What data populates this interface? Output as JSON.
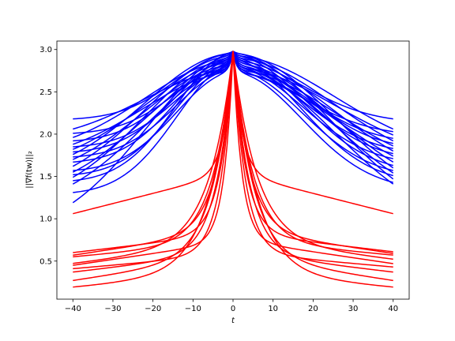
{
  "chart_data": {
    "type": "line",
    "xlabel": "t",
    "ylabel": "||∇f(tw)||₂",
    "xlim": [
      -44,
      44
    ],
    "ylim": [
      0.05,
      3.1
    ],
    "xticks": [
      -40,
      -30,
      -20,
      -10,
      0,
      10,
      20,
      30,
      40
    ],
    "yticks": [
      0.5,
      1.0,
      1.5,
      2.0,
      2.5,
      3.0
    ],
    "ytick_labels": [
      "0.5",
      "1.0",
      "1.5",
      "2.0",
      "2.5",
      "3.0"
    ],
    "peak_value": 2.98,
    "grid": false,
    "legend": "none",
    "colors": {
      "blue_group": "#0000ff",
      "red_group": "#ff0000"
    },
    "series_blue": [
      {
        "left_end": 2.18,
        "right_end": 2.18
      },
      {
        "left_end": 2.06,
        "right_end": 2.06
      },
      {
        "left_end": 2.01,
        "right_end": 2.03
      },
      {
        "left_end": 1.96,
        "right_end": 1.99
      },
      {
        "left_end": 1.92,
        "right_end": 1.95
      },
      {
        "left_end": 1.88,
        "right_end": 1.92
      },
      {
        "left_end": 1.85,
        "right_end": 1.89
      },
      {
        "left_end": 1.82,
        "right_end": 1.86
      },
      {
        "left_end": 1.79,
        "right_end": 1.83
      },
      {
        "left_end": 1.76,
        "right_end": 1.8
      },
      {
        "left_end": 1.73,
        "right_end": 1.77
      },
      {
        "left_end": 1.7,
        "right_end": 1.74
      },
      {
        "left_end": 1.67,
        "right_end": 1.71
      },
      {
        "left_end": 1.62,
        "right_end": 1.67
      },
      {
        "left_end": 1.57,
        "right_end": 1.63
      },
      {
        "left_end": 1.55,
        "right_end": 1.6
      },
      {
        "left_end": 1.52,
        "right_end": 1.57
      },
      {
        "left_end": 1.49,
        "right_end": 1.54
      },
      {
        "left_end": 1.45,
        "right_end": 1.51
      },
      {
        "left_end": 1.41,
        "right_end": 1.47
      },
      {
        "left_end": 1.31,
        "right_end": 1.43
      },
      {
        "left_end": 1.19,
        "right_end": 1.41
      }
    ],
    "series_red": [
      {
        "left_end": 1.06,
        "right_end": 1.06
      },
      {
        "left_end": 0.6,
        "right_end": 0.61
      },
      {
        "left_end": 0.57,
        "right_end": 0.59
      },
      {
        "left_end": 0.55,
        "right_end": 0.57
      },
      {
        "left_end": 0.47,
        "right_end": 0.52
      },
      {
        "left_end": 0.45,
        "right_end": 0.47
      },
      {
        "left_end": 0.41,
        "right_end": 0.43
      },
      {
        "left_end": 0.37,
        "right_end": 0.37
      },
      {
        "left_end": 0.27,
        "right_end": 0.27
      },
      {
        "left_end": 0.19,
        "right_end": 0.19
      }
    ]
  }
}
